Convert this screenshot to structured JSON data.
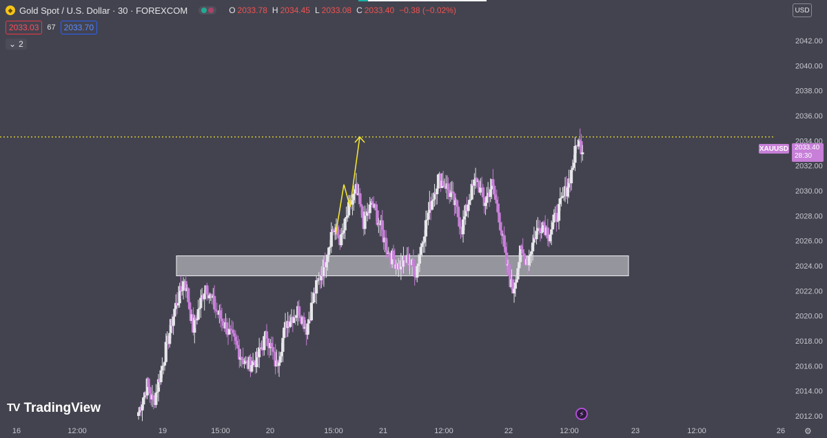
{
  "header": {
    "title": "Gold Spot / U.S. Dollar · 30 · FOREXCOM",
    "open_key": "O",
    "open": "2033.78",
    "high_key": "H",
    "high": "2034.45",
    "low_key": "L",
    "low": "2033.08",
    "close_key": "C",
    "close": "2033.40",
    "change": "−0.38 (−0.02%)"
  },
  "quotes": {
    "sell": "2033.03",
    "spread": "67",
    "buy": "2033.70"
  },
  "indicators_toggle": "2",
  "currency": "USD",
  "last_price": {
    "symbol": "XAUUSD",
    "price": "2033.40",
    "countdown": "28:30"
  },
  "branding": "TradingView",
  "colors": {
    "background": "#43434f",
    "up_candle": "#e6e6ea",
    "down_candle": "#c77fd8",
    "level_line": "#f2e531",
    "arrow": "#f2e531",
    "zone": "#d8d8e0"
  },
  "chart_data": {
    "type": "candlestick",
    "symbol": "XAUUSD",
    "ylim": [
      2011.5,
      2043.5
    ],
    "y_ticks": [
      "2012.00",
      "2014.00",
      "2016.00",
      "2018.00",
      "2020.00",
      "2022.00",
      "2024.00",
      "2026.00",
      "2028.00",
      "2030.00",
      "2032.00",
      "2034.00",
      "2036.00",
      "2038.00",
      "2040.00",
      "2042.00"
    ],
    "x_ticks": [
      "16",
      "12:00",
      "19",
      "15:00",
      "20",
      "15:00",
      "21",
      "12:00",
      "22",
      "12:00",
      "23",
      "12:00",
      "26"
    ],
    "horizontal_level": 2034.3,
    "support_zone": [
      2023.2,
      2024.8
    ],
    "arrow_path": [
      [
        2026.5,
        0
      ],
      [
        2030.5,
        1
      ],
      [
        2028.7,
        2
      ],
      [
        2034.3,
        3
      ]
    ],
    "price_path": [
      [
        2012.0,
        0
      ],
      [
        2014.5,
        8
      ],
      [
        2013.0,
        13
      ],
      [
        2016.0,
        20
      ],
      [
        2020.5,
        30
      ],
      [
        2023.0,
        38
      ],
      [
        2019.0,
        45
      ],
      [
        2022.5,
        55
      ],
      [
        2020.5,
        63
      ],
      [
        2019.0,
        72
      ],
      [
        2017.5,
        80
      ],
      [
        2016.0,
        88
      ],
      [
        2016.5,
        96
      ],
      [
        2018.5,
        104
      ],
      [
        2016.0,
        112
      ],
      [
        2019.5,
        120
      ],
      [
        2020.5,
        130
      ],
      [
        2019.0,
        136
      ],
      [
        2022.0,
        143
      ],
      [
        2024.0,
        150
      ],
      [
        2027.0,
        157
      ],
      [
        2026.0,
        164
      ],
      [
        2028.5,
        170
      ],
      [
        2030.0,
        176
      ],
      [
        2027.5,
        182
      ],
      [
        2029.0,
        189
      ],
      [
        2027.0,
        196
      ],
      [
        2025.0,
        202
      ],
      [
        2024.0,
        210
      ],
      [
        2024.5,
        218
      ],
      [
        2023.5,
        224
      ],
      [
        2026.5,
        230
      ],
      [
        2029.0,
        236
      ],
      [
        2031.0,
        242
      ],
      [
        2030.5,
        248
      ],
      [
        2029.0,
        255
      ],
      [
        2027.0,
        261
      ],
      [
        2029.5,
        267
      ],
      [
        2031.0,
        273
      ],
      [
        2029.0,
        279
      ],
      [
        2030.5,
        285
      ],
      [
        2028.0,
        291
      ],
      [
        2024.5,
        296
      ],
      [
        2022.0,
        302
      ],
      [
        2025.0,
        308
      ],
      [
        2024.5,
        314
      ],
      [
        2026.5,
        320
      ],
      [
        2027.5,
        326
      ],
      [
        2026.5,
        331
      ],
      [
        2028.0,
        337
      ],
      [
        2029.5,
        343
      ],
      [
        2031.5,
        349
      ],
      [
        2034.0,
        354
      ],
      [
        2033.4,
        358
      ]
    ]
  }
}
